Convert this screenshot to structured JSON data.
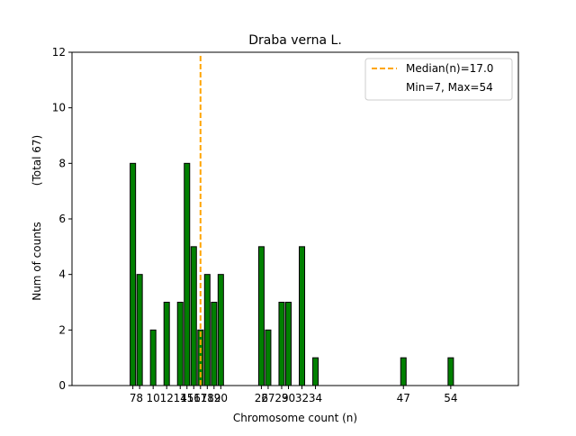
{
  "chart_data": {
    "type": "bar",
    "title": "Draba verna L.",
    "xlabel": "Chromosome count (n)",
    "ylabel": "Num of counts",
    "ylabel_note": "(Total 67)",
    "xlim": [
      -2,
      64
    ],
    "ylim": [
      0,
      12
    ],
    "yticks": [
      0,
      2,
      4,
      6,
      8,
      10,
      12
    ],
    "xticks": [
      7,
      8,
      10,
      12,
      14,
      15,
      16,
      17,
      18,
      19,
      20,
      26,
      27,
      29,
      30,
      32,
      34,
      47,
      54
    ],
    "x": [
      7,
      8,
      10,
      12,
      14,
      15,
      16,
      17,
      18,
      19,
      20,
      26,
      27,
      29,
      30,
      32,
      34,
      47,
      54
    ],
    "values": [
      8,
      4,
      2,
      3,
      3,
      8,
      5,
      2,
      4,
      3,
      4,
      5,
      2,
      3,
      3,
      5,
      1,
      1,
      1
    ],
    "bar_color": "#008000",
    "edge_color": "#000000",
    "median": 17.0,
    "median_color": "#ffa500",
    "legend": {
      "placement": "top-right",
      "entries": [
        "Median(n)=17.0",
        "Min=7, Max=54"
      ]
    },
    "grid": false
  }
}
